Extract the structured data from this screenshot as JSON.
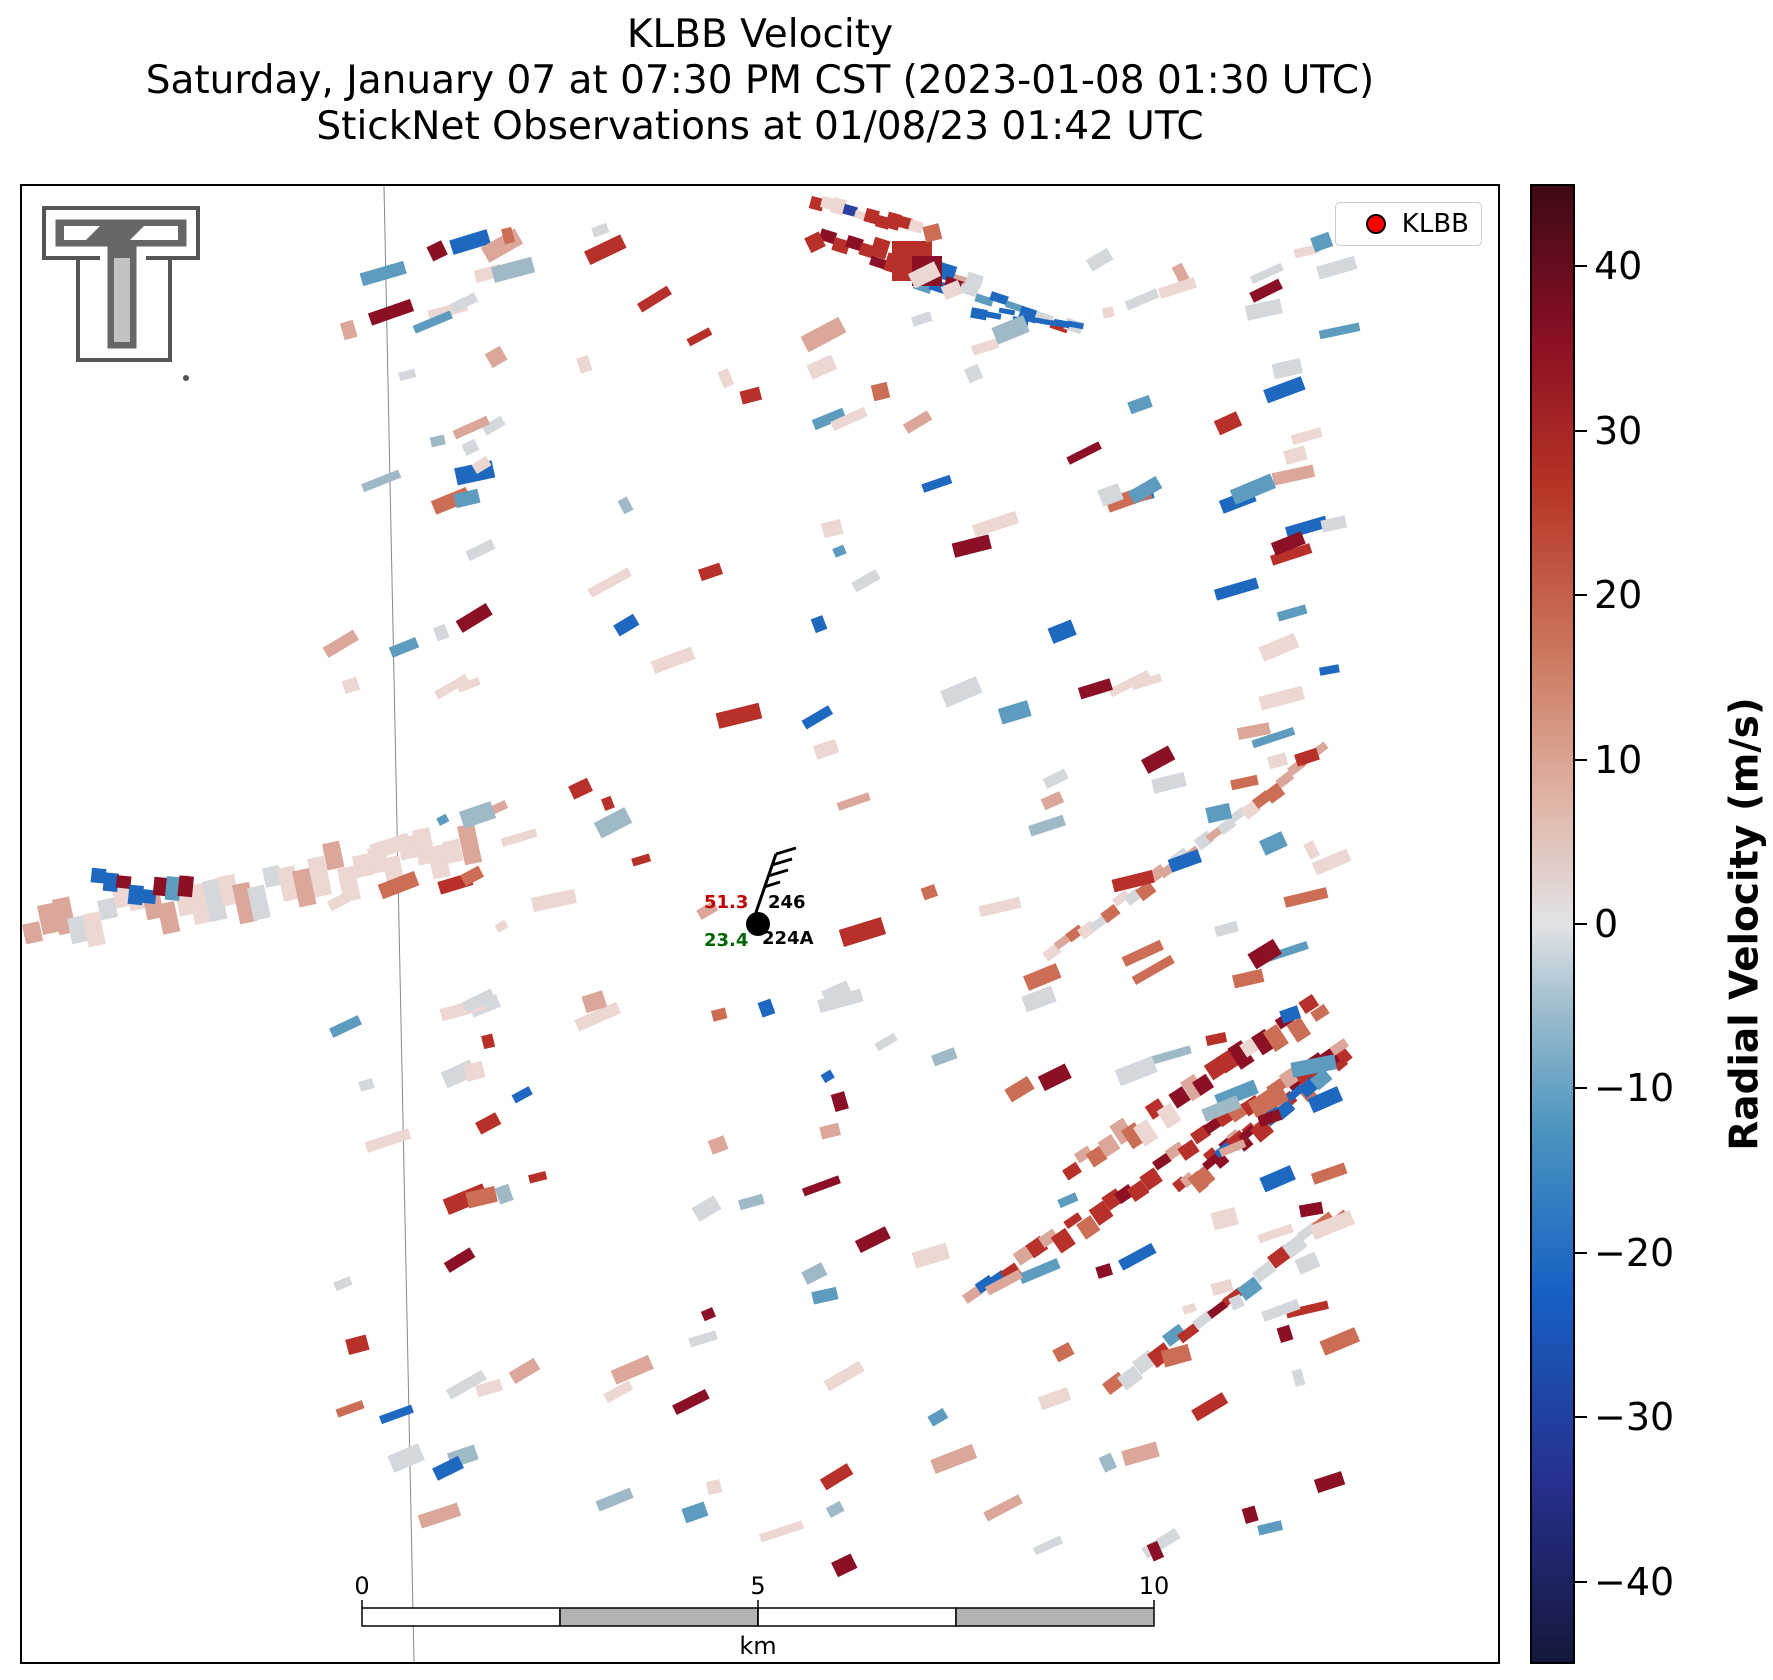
{
  "header": {
    "title": "KLBB Velocity",
    "subtitle": "Saturday, January 07 at 07:30 PM CST (2023-01-08 01:30 UTC)",
    "subtitle2": "StickNet Observations at 01/08/23 01:42 UTC"
  },
  "legend": {
    "label": "KLBB",
    "marker_color": "#ff0000"
  },
  "station": {
    "upper_value": "51.3",
    "upper_value_color": "#c00000",
    "upper_id": "246",
    "lower_value": "23.4",
    "lower_value_color": "#006400",
    "lower_id": "224A"
  },
  "scalebar": {
    "ticks": [
      "0",
      "5",
      "10"
    ],
    "unit": "km"
  },
  "colorbar": {
    "label": "Radial Velocity (m/s)",
    "ticks": [
      "40",
      "30",
      "20",
      "10",
      "0",
      "−10",
      "−20",
      "−30",
      "−40"
    ],
    "range": [
      -45,
      45
    ]
  },
  "chart_data": {
    "type": "heatmap",
    "variable": "Radial Velocity",
    "units": "m/s",
    "value_range": [
      -45,
      45
    ],
    "colorbar_ticks": [
      40,
      30,
      20,
      10,
      0,
      -10,
      -20,
      -30,
      -40
    ],
    "colormap": [
      "#14183b",
      "#262f8c",
      "#1760c4",
      "#4a94bf",
      "#9bbccd",
      "#e2e3e6",
      "#e0b6a9",
      "#cc7a5f",
      "#b53224",
      "#870f24",
      "#3d0a14"
    ],
    "scale_km": [
      0,
      5,
      10
    ]
  }
}
